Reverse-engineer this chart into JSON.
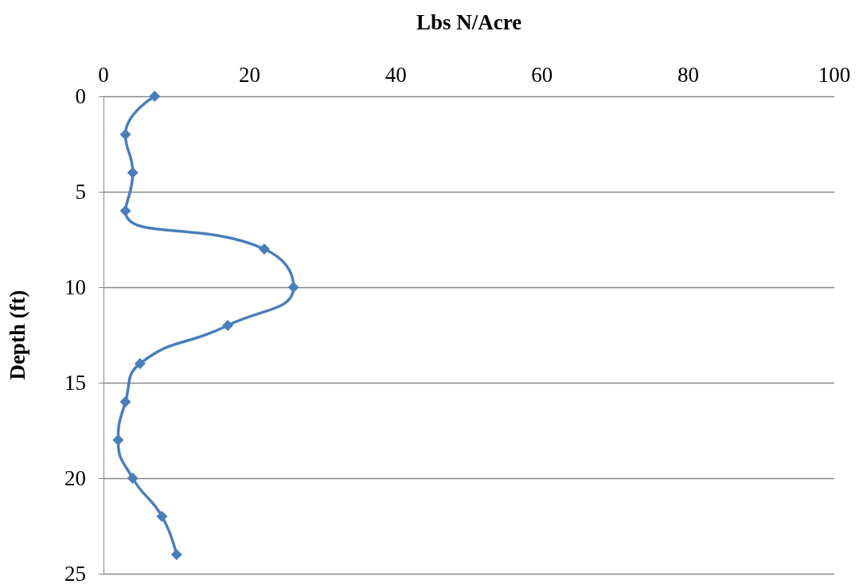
{
  "chart_data": {
    "type": "line",
    "orientation": "horizontal",
    "xlabel": "Lbs N/Acre",
    "ylabel": "Depth (ft)",
    "x": [
      0,
      2,
      4,
      6,
      8,
      10,
      12,
      14,
      16,
      18,
      20,
      22,
      24
    ],
    "series": [
      {
        "color": "#4a7ebb",
        "values": [
          7,
          3,
          4,
          3,
          22,
          26,
          17,
          5,
          3,
          2,
          4,
          8,
          10
        ]
      }
    ],
    "xlim": [
      0,
      100
    ],
    "xticks": [
      0,
      20,
      40,
      60,
      80,
      100
    ],
    "ylim": [
      25,
      0
    ],
    "yticks": [
      0,
      5,
      10,
      15,
      20,
      25
    ],
    "grid": "y",
    "marker": "diamond",
    "line_style": "solid"
  }
}
